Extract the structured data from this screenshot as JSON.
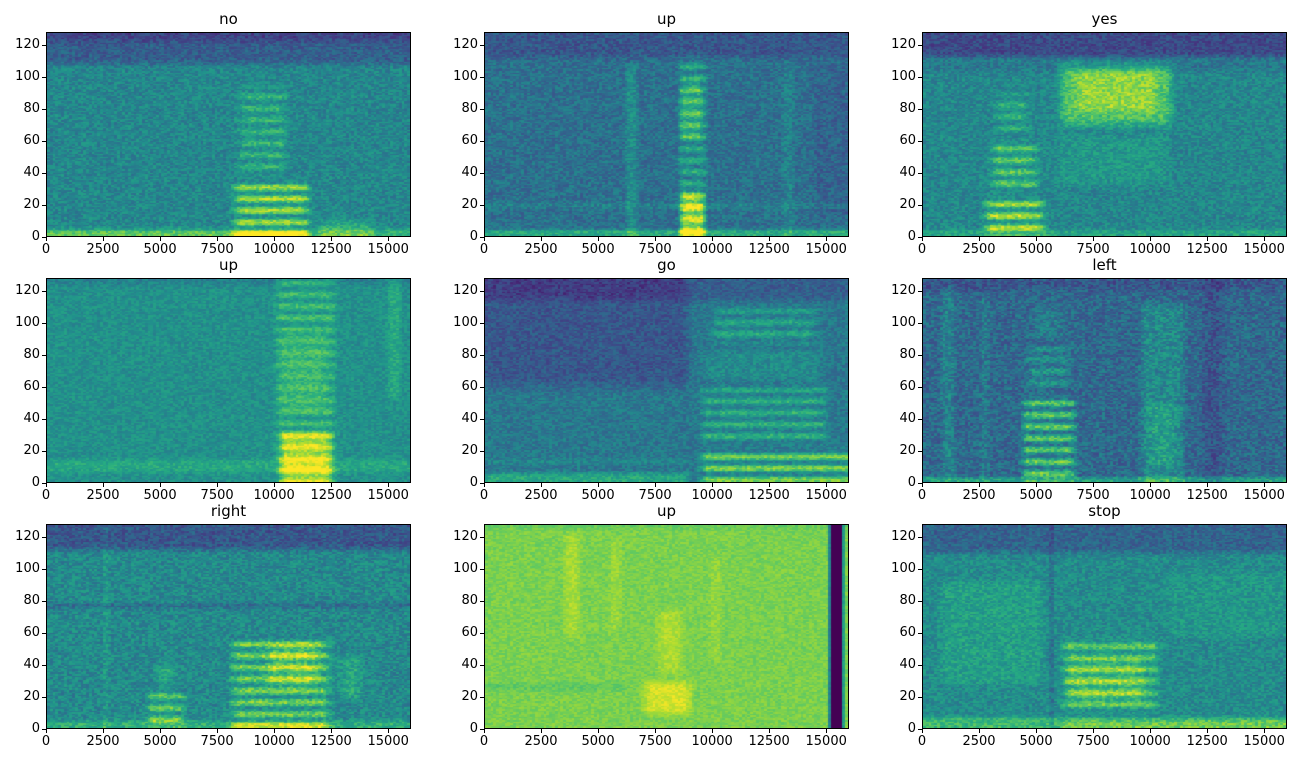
{
  "figure": {
    "background": "#ffffff",
    "rows": 3,
    "cols": 3,
    "text_color": "#000000"
  },
  "axes": {
    "x_range": [
      0,
      16000
    ],
    "x_ticks": [
      0,
      2500,
      5000,
      7500,
      10000,
      12500,
      15000
    ],
    "y_range": [
      0,
      128
    ],
    "y_ticks": [
      0,
      20,
      40,
      60,
      80,
      100,
      120
    ],
    "grid": false
  },
  "colormap": {
    "name": "viridis",
    "stops": [
      [
        0.0,
        "#440154"
      ],
      [
        0.125,
        "#46327e"
      ],
      [
        0.25,
        "#3b528b"
      ],
      [
        0.375,
        "#2c718e"
      ],
      [
        0.5,
        "#21918c"
      ],
      [
        0.625,
        "#27ad81"
      ],
      [
        0.75,
        "#5cc863"
      ],
      [
        0.875,
        "#aadc32"
      ],
      [
        1.0,
        "#fde725"
      ]
    ]
  },
  "chart_data": [
    {
      "type": "heatmap",
      "title": "no",
      "xlabel": "",
      "ylabel": "",
      "xlim": [
        0,
        16000
      ],
      "ylim": [
        0,
        128
      ],
      "base": 0.46,
      "noise": 0.1,
      "seed": 11,
      "regions": [
        {
          "x": [
            0,
            16000
          ],
          "y": [
            106,
            128
          ],
          "amp": -0.16
        },
        {
          "x": [
            0,
            16000
          ],
          "y": [
            120,
            128
          ],
          "amp": -0.1
        },
        {
          "x": [
            0,
            16000
          ],
          "y": [
            0,
            6
          ],
          "amp": 0.2,
          "soft_y": 3
        },
        {
          "x": [
            0,
            11000
          ],
          "y": [
            0,
            4
          ],
          "amp": 0.1,
          "soft_y": 2
        },
        {
          "x": [
            8000,
            11800
          ],
          "y": [
            0,
            36
          ],
          "amp": 0.42,
          "striated": true
        },
        {
          "x": [
            8200,
            10800
          ],
          "y": [
            36,
            96
          ],
          "amp": 0.2,
          "striated": true
        },
        {
          "x": [
            11800,
            14500
          ],
          "y": [
            0,
            12
          ],
          "amp": 0.14,
          "soft_y": 4
        }
      ]
    },
    {
      "type": "heatmap",
      "title": "up",
      "xlabel": "",
      "ylabel": "",
      "xlim": [
        0,
        16000
      ],
      "ylim": [
        0,
        128
      ],
      "base": 0.37,
      "noise": 0.1,
      "seed": 22,
      "regions": [
        {
          "x": [
            0,
            16000
          ],
          "y": [
            110,
            128
          ],
          "amp": -0.1
        },
        {
          "x": [
            0,
            16000
          ],
          "y": [
            16,
            22
          ],
          "amp": 0.08,
          "soft_y": 3
        },
        {
          "x": [
            0,
            16000
          ],
          "y": [
            0,
            5
          ],
          "amp": 0.24,
          "soft_y": 2
        },
        {
          "x": [
            8400,
            9900
          ],
          "y": [
            0,
            114
          ],
          "amp": 0.26,
          "striated": true,
          "soft_x": 300
        },
        {
          "x": [
            8500,
            9800
          ],
          "y": [
            0,
            30
          ],
          "amp": 0.34,
          "soft_x": 300
        },
        {
          "x": [
            8500,
            9700
          ],
          "y": [
            58,
            100
          ],
          "amp": 0.14,
          "soft_x": 300
        },
        {
          "x": [
            6100,
            6800
          ],
          "y": [
            0,
            110
          ],
          "amp": 0.12,
          "soft_x": 250
        },
        {
          "x": [
            13000,
            13700
          ],
          "y": [
            0,
            112
          ],
          "amp": 0.07,
          "soft_x": 250
        },
        {
          "x": [
            14200,
            16000
          ],
          "y": [
            10,
            110
          ],
          "amp": -0.05
        }
      ]
    },
    {
      "type": "heatmap",
      "title": "yes",
      "xlabel": "",
      "ylabel": "",
      "xlim": [
        0,
        16000
      ],
      "ylim": [
        0,
        128
      ],
      "base": 0.46,
      "noise": 0.1,
      "seed": 33,
      "regions": [
        {
          "x": [
            0,
            16000
          ],
          "y": [
            110,
            128
          ],
          "amp": -0.24
        },
        {
          "x": [
            0,
            16000
          ],
          "y": [
            102,
            112
          ],
          "amp": -0.08
        },
        {
          "x": [
            2500,
            5600
          ],
          "y": [
            0,
            26
          ],
          "amp": 0.44,
          "striated": true
        },
        {
          "x": [
            2800,
            5300
          ],
          "y": [
            26,
            62
          ],
          "amp": 0.3,
          "striated": true
        },
        {
          "x": [
            3000,
            4900
          ],
          "y": [
            62,
            92
          ],
          "amp": 0.18,
          "striated": true
        },
        {
          "x": [
            5800,
            11200
          ],
          "y": [
            66,
            112
          ],
          "amp": 0.26,
          "soft_y": 8
        },
        {
          "x": [
            6500,
            10500
          ],
          "y": [
            76,
            106
          ],
          "amp": 0.12
        },
        {
          "x": [
            5800,
            11000
          ],
          "y": [
            30,
            66
          ],
          "amp": 0.07
        },
        {
          "x": [
            0,
            16000
          ],
          "y": [
            0,
            5
          ],
          "amp": 0.12,
          "soft_y": 2
        }
      ]
    },
    {
      "type": "heatmap",
      "title": "up",
      "xlabel": "",
      "ylabel": "",
      "xlim": [
        0,
        16000
      ],
      "ylim": [
        0,
        128
      ],
      "base": 0.5,
      "noise": 0.08,
      "seed": 44,
      "regions": [
        {
          "x": [
            0,
            16000
          ],
          "y": [
            4,
            16
          ],
          "amp": 0.1,
          "soft_y": 4
        },
        {
          "x": [
            9900,
            12900
          ],
          "y": [
            0,
            128
          ],
          "amp": 0.2,
          "striated": true,
          "soft_x": 400
        },
        {
          "x": [
            10100,
            12700
          ],
          "y": [
            0,
            34
          ],
          "amp": 0.3,
          "soft_x": 400
        },
        {
          "x": [
            10000,
            12500
          ],
          "y": [
            40,
            96
          ],
          "amp": 0.12,
          "striated": true
        },
        {
          "x": [
            14900,
            15700
          ],
          "y": [
            50,
            128
          ],
          "amp": 0.1,
          "soft_x": 250
        },
        {
          "x": [
            0,
            16000
          ],
          "y": [
            122,
            128
          ],
          "amp": -0.07
        }
      ]
    },
    {
      "type": "heatmap",
      "title": "go",
      "xlabel": "",
      "ylabel": "",
      "xlim": [
        0,
        16000
      ],
      "ylim": [
        0,
        128
      ],
      "base": 0.4,
      "noise": 0.09,
      "seed": 55,
      "regions": [
        {
          "x": [
            0,
            9200
          ],
          "y": [
            55,
            128
          ],
          "amp": -0.13,
          "soft_y": 10
        },
        {
          "x": [
            0,
            16000
          ],
          "y": [
            112,
            128
          ],
          "amp": -0.1
        },
        {
          "x": [
            0,
            9200
          ],
          "y": [
            0,
            7
          ],
          "amp": 0.2,
          "soft_y": 3
        },
        {
          "x": [
            0,
            9200
          ],
          "y": [
            10,
            16
          ],
          "amp": 0.07,
          "soft_y": 3
        },
        {
          "x": [
            9300,
            16000
          ],
          "y": [
            0,
            22
          ],
          "amp": 0.42,
          "soft_y": 6,
          "striated": true
        },
        {
          "x": [
            9300,
            15300
          ],
          "y": [
            22,
            62
          ],
          "amp": 0.24,
          "striated": true
        },
        {
          "x": [
            9800,
            14800
          ],
          "y": [
            85,
            112
          ],
          "amp": 0.2,
          "striated": true
        },
        {
          "x": [
            9500,
            15000
          ],
          "y": [
            62,
            85
          ],
          "amp": 0.08
        }
      ]
    },
    {
      "type": "heatmap",
      "title": "left",
      "xlabel": "",
      "ylabel": "",
      "xlim": [
        0,
        16000
      ],
      "ylim": [
        0,
        128
      ],
      "base": 0.34,
      "noise": 0.12,
      "seed": 66,
      "regions": [
        {
          "x": [
            700,
            1500
          ],
          "y": [
            0,
            125
          ],
          "amp": 0.1,
          "soft_x": 250
        },
        {
          "x": [
            2400,
            3000
          ],
          "y": [
            0,
            120
          ],
          "amp": 0.07,
          "soft_x": 250
        },
        {
          "x": [
            4200,
            6900
          ],
          "y": [
            0,
            56
          ],
          "amp": 0.42,
          "striated": true,
          "soft_x": 400
        },
        {
          "x": [
            4400,
            6700
          ],
          "y": [
            56,
            88
          ],
          "amp": 0.2,
          "striated": true
        },
        {
          "x": [
            4600,
            6400
          ],
          "y": [
            88,
            112
          ],
          "amp": 0.08
        },
        {
          "x": [
            9400,
            11700
          ],
          "y": [
            0,
            115
          ],
          "amp": 0.13,
          "soft_x": 400
        },
        {
          "x": [
            9700,
            11300
          ],
          "y": [
            8,
            52
          ],
          "amp": 0.1
        },
        {
          "x": [
            12100,
            13500
          ],
          "y": [
            0,
            128
          ],
          "amp": -0.08
        },
        {
          "x": [
            0,
            16000
          ],
          "y": [
            0,
            4
          ],
          "amp": 0.24,
          "soft_y": 2
        },
        {
          "x": [
            0,
            16000
          ],
          "y": [
            118,
            128
          ],
          "amp": -0.07
        }
      ]
    },
    {
      "type": "heatmap",
      "title": "right",
      "xlabel": "",
      "ylabel": "",
      "xlim": [
        0,
        16000
      ],
      "ylim": [
        0,
        128
      ],
      "base": 0.47,
      "noise": 0.11,
      "seed": 77,
      "regions": [
        {
          "x": [
            0,
            16000
          ],
          "y": [
            110,
            128
          ],
          "amp": -0.2
        },
        {
          "x": [
            0,
            16000
          ],
          "y": [
            74,
            80
          ],
          "amp": -0.12,
          "soft_y": 3
        },
        {
          "x": [
            4200,
            6300
          ],
          "y": [
            0,
            26
          ],
          "amp": 0.3,
          "striated": true
        },
        {
          "x": [
            4600,
            5900
          ],
          "y": [
            26,
            42
          ],
          "amp": 0.12
        },
        {
          "x": [
            7900,
            12700
          ],
          "y": [
            0,
            58
          ],
          "amp": 0.33,
          "striated": true
        },
        {
          "x": [
            9500,
            12200
          ],
          "y": [
            24,
            56
          ],
          "amp": 0.14
        },
        {
          "x": [
            12700,
            14100
          ],
          "y": [
            16,
            48
          ],
          "amp": 0.12
        },
        {
          "x": [
            0,
            16000
          ],
          "y": [
            0,
            6
          ],
          "amp": 0.16,
          "soft_y": 3
        },
        {
          "x": [
            2400,
            2800
          ],
          "y": [
            0,
            128
          ],
          "amp": 0.06,
          "soft_x": 150
        }
      ]
    },
    {
      "type": "heatmap",
      "title": "up",
      "xlabel": "",
      "ylabel": "",
      "xlim": [
        0,
        16000
      ],
      "ylim": [
        0,
        128
      ],
      "base": 0.8,
      "noise": 0.05,
      "seed": 88,
      "regions": [
        {
          "x": [
            15150,
            15850
          ],
          "y": [
            0,
            128
          ],
          "amp": -0.85,
          "soft_x": 120
        },
        {
          "x": [
            6800,
            9300
          ],
          "y": [
            6,
            32
          ],
          "amp": 0.14,
          "soft_y": 6
        },
        {
          "x": [
            7400,
            8900
          ],
          "y": [
            32,
            76
          ],
          "amp": 0.08
        },
        {
          "x": [
            3400,
            4300
          ],
          "y": [
            55,
            125
          ],
          "amp": 0.07,
          "soft_x": 250
        },
        {
          "x": [
            5400,
            6100
          ],
          "y": [
            60,
            120
          ],
          "amp": 0.05,
          "soft_x": 250
        },
        {
          "x": [
            9800,
            10500
          ],
          "y": [
            40,
            110
          ],
          "amp": 0.04,
          "soft_x": 250
        },
        {
          "x": [
            0,
            6500
          ],
          "y": [
            22,
            30
          ],
          "amp": -0.05,
          "soft_y": 3
        },
        {
          "x": [
            0,
            16000
          ],
          "y": [
            124,
            128
          ],
          "amp": -0.05
        }
      ]
    },
    {
      "type": "heatmap",
      "title": "stop",
      "xlabel": "",
      "ylabel": "",
      "xlim": [
        0,
        16000
      ],
      "ylim": [
        0,
        128
      ],
      "base": 0.48,
      "noise": 0.1,
      "seed": 99,
      "regions": [
        {
          "x": [
            0,
            16000
          ],
          "y": [
            108,
            128
          ],
          "amp": -0.16
        },
        {
          "x": [
            5900,
            10600
          ],
          "y": [
            8,
            58
          ],
          "amp": 0.28,
          "striated": true
        },
        {
          "x": [
            6200,
            9900
          ],
          "y": [
            14,
            46
          ],
          "amp": 0.12
        },
        {
          "x": [
            500,
            5500
          ],
          "y": [
            25,
            95
          ],
          "amp": 0.08
        },
        {
          "x": [
            5500,
            5850
          ],
          "y": [
            0,
            128
          ],
          "amp": -0.1,
          "soft_x": 150
        },
        {
          "x": [
            0,
            16000
          ],
          "y": [
            0,
            8
          ],
          "amp": 0.2,
          "soft_y": 3
        },
        {
          "x": [
            10600,
            16000
          ],
          "y": [
            55,
            100
          ],
          "amp": 0.05
        },
        {
          "x": [
            5900,
            16000
          ],
          "y": [
            0,
            6
          ],
          "amp": 0.1,
          "soft_y": 3
        }
      ]
    }
  ]
}
